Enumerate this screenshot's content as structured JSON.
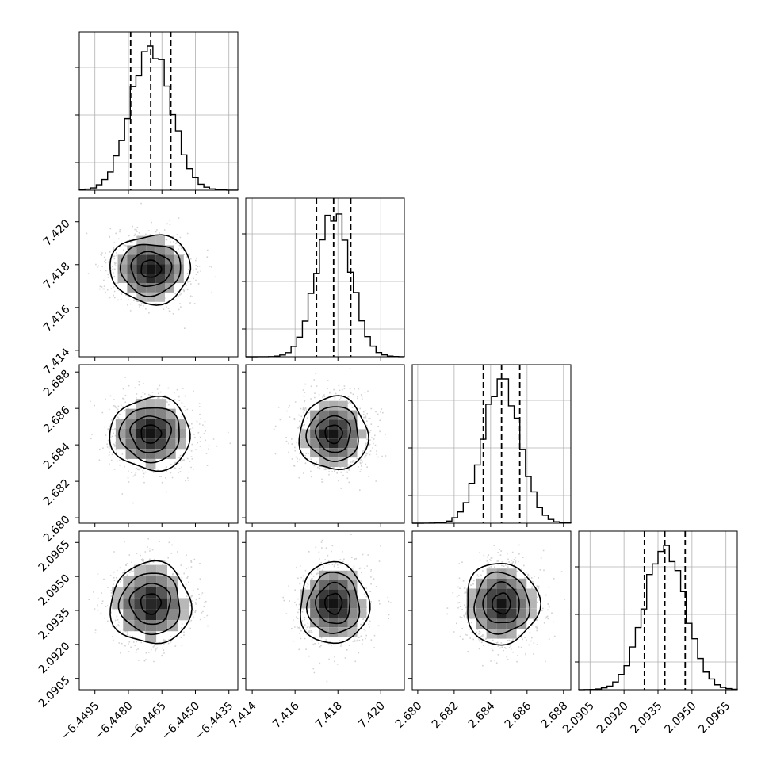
{
  "chart_data": {
    "type": "corner",
    "grid": true,
    "colors": {
      "line": "#000000",
      "grid": "#b0b0b0",
      "points": "#7f7f7f",
      "background": "#ffffff"
    },
    "parameters": [
      {
        "range": [
          -6.4502,
          -6.4431
        ],
        "ticks": [
          -6.4495,
          -6.448,
          -6.4465,
          -6.445,
          -6.4435
        ],
        "tick_labels": [
          "−6.4495",
          "−6.4480",
          "−6.4465",
          "−6.4450",
          "−6.4435"
        ],
        "quantiles": [
          -6.4479,
          -6.447,
          -6.4461
        ],
        "mean": -6.447,
        "sigma": 0.0009
      },
      {
        "range": [
          7.4137,
          7.4211
        ],
        "ticks": [
          7.414,
          7.416,
          7.418,
          7.42
        ],
        "tick_labels": [
          "7.414",
          "7.416",
          "7.418",
          "7.420"
        ],
        "quantiles": [
          7.417,
          7.4178,
          7.4186
        ],
        "mean": 7.4178,
        "sigma": 0.0008
      },
      {
        "range": [
          2.6797,
          2.6884
        ],
        "ticks": [
          2.68,
          2.682,
          2.684,
          2.686,
          2.688
        ],
        "tick_labels": [
          "2.680",
          "2.682",
          "2.684",
          "2.686",
          "2.688"
        ],
        "quantiles": [
          2.6836,
          2.6846,
          2.6856
        ],
        "mean": 2.6846,
        "sigma": 0.001
      },
      {
        "range": [
          2.09,
          2.097
        ],
        "ticks": [
          2.0905,
          2.092,
          2.0935,
          2.095,
          2.0965
        ],
        "tick_labels": [
          "2.0905",
          "2.0920",
          "2.0935",
          "2.0950",
          "2.0965"
        ],
        "quantiles": [
          2.0929,
          2.0938,
          2.0947
        ],
        "mean": 2.0938,
        "sigma": 0.0009
      }
    ]
  }
}
